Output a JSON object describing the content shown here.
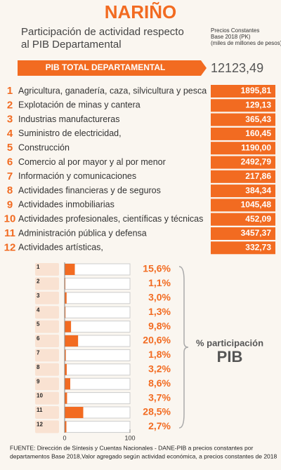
{
  "header": {
    "title": "NARIÑO",
    "subtitle": [
      "Participación de actividad respecto",
      "al PIB Departamental"
    ],
    "units_note": [
      "Precios Constantes",
      "Base 2018 (PK)",
      "(miles de millones de pesos)"
    ]
  },
  "total": {
    "label": "PIB TOTAL DEPARTAMENTAL",
    "value": "12123,49"
  },
  "table": {
    "rows": [
      [
        "1",
        "Agricultura, ganadería, caza, silvicultura y pesca",
        "1895,81"
      ],
      [
        "2",
        "Explotación de minas y cantera",
        "129,13"
      ],
      [
        "3",
        "Industrias manufactureras",
        "365,43"
      ],
      [
        "4",
        "Suministro de electricidad,",
        "160,45"
      ],
      [
        "5",
        "Construcción",
        "1190,00"
      ],
      [
        "6",
        "Comercio al por mayor y al por menor",
        "2492,79"
      ],
      [
        "7",
        "Información y comunicaciones",
        "217,86"
      ],
      [
        "8",
        "Actividades financieras y de seguros",
        "384,34"
      ],
      [
        "9",
        "Actividades inmobiliarias",
        "1045,48"
      ],
      [
        "10",
        "Actividades profesionales, científicas y técnicas",
        "452,09"
      ],
      [
        "11",
        "Administración pública y defensa",
        "3457,37"
      ],
      [
        "12",
        "Actividades artísticas,",
        "332,73"
      ]
    ]
  },
  "chart_data": {
    "type": "bar",
    "orientation": "horizontal",
    "categories": [
      "1",
      "2",
      "3",
      "4",
      "5",
      "6",
      "7",
      "8",
      "9",
      "10",
      "11",
      "12"
    ],
    "values": [
      15.6,
      1.1,
      3.0,
      1.3,
      9.8,
      20.6,
      1.8,
      3.2,
      8.6,
      3.7,
      28.5,
      2.7
    ],
    "value_labels": [
      "15,6%",
      "1,1%",
      "3,0%",
      "1,3%",
      "9,8%",
      "20,6%",
      "1,8%",
      "3,2%",
      "8,6%",
      "3,7%",
      "28,5%",
      "2,7%"
    ],
    "color": "#f26b21",
    "xlim": [
      0,
      100
    ],
    "xticks": [
      0,
      100
    ],
    "grid": false,
    "annotation": [
      "% participación",
      "PIB"
    ]
  },
  "footer": [
    "FUENTE:  Dirección de Síntesis y Cuentas Nacionales - DANE-PIB a precios constantes por",
    "departamentos Base 2018,Valor agregado según actividad económica, a precios constantes de 2018"
  ]
}
